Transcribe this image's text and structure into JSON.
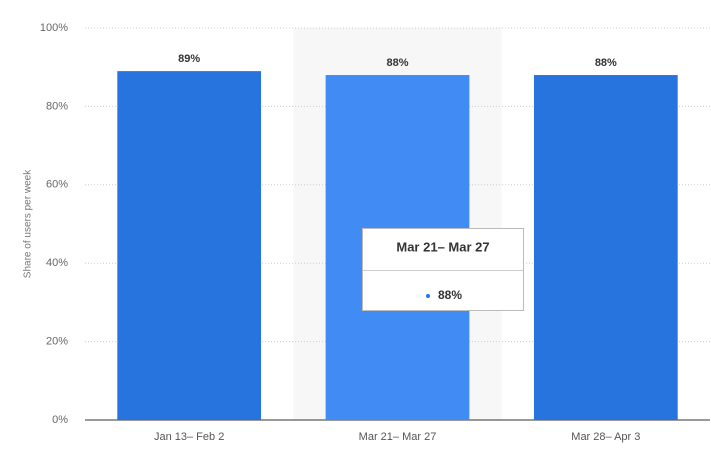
{
  "chart_data": {
    "type": "bar",
    "y_label": "Share of users per week",
    "categories": [
      "Jan 13– Feb 2",
      "Mar 21– Mar 27",
      "Mar 28– Apr 3"
    ],
    "values": [
      89,
      88,
      88
    ],
    "value_labels": [
      "89%",
      "88%",
      "88%"
    ],
    "color": "#2874de",
    "hover_color": "#418bf5",
    "hover_index": 1,
    "ylim": [
      0,
      100
    ],
    "yticks": [
      {
        "value": 0,
        "label": "0%"
      },
      {
        "value": 20,
        "label": "20%"
      },
      {
        "value": 40,
        "label": "40%"
      },
      {
        "value": 60,
        "label": "60%"
      },
      {
        "value": 80,
        "label": "80%"
      },
      {
        "value": 100,
        "label": "100%"
      }
    ],
    "grid": true
  }
}
